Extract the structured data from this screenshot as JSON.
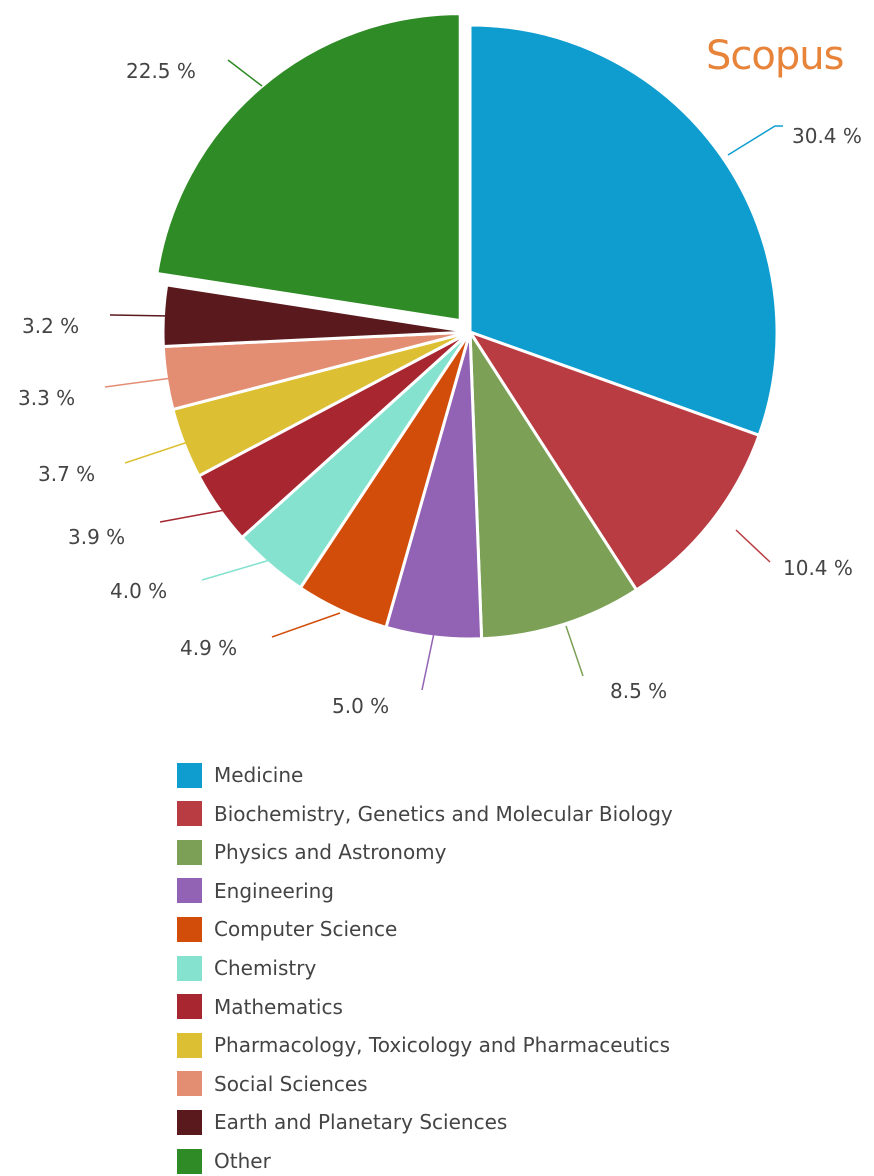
{
  "brand": "Scopus",
  "chart_data": {
    "type": "pie",
    "unit": "%",
    "slices": [
      {
        "label": "Medicine",
        "value": 30.4,
        "value_label": "30.4 %",
        "color": "#0f9dd0"
      },
      {
        "label": "Biochemistry, Genetics and Molecular Biology",
        "value": 10.4,
        "value_label": "10.4 %",
        "color": "#b93c43"
      },
      {
        "label": "Physics and Astronomy",
        "value": 8.5,
        "value_label": "8.5 %",
        "color": "#7ba056"
      },
      {
        "label": "Engineering",
        "value": 5.0,
        "value_label": "5.0 %",
        "color": "#9262b4"
      },
      {
        "label": "Computer Science",
        "value": 4.9,
        "value_label": "4.9 %",
        "color": "#d14d09"
      },
      {
        "label": "Chemistry",
        "value": 4.0,
        "value_label": "4.0 %",
        "color": "#84e2cf"
      },
      {
        "label": "Mathematics",
        "value": 3.9,
        "value_label": "3.9 %",
        "color": "#a72630"
      },
      {
        "label": "Pharmacology, Toxicology and Pharmaceutics",
        "value": 3.7,
        "value_label": "3.7 %",
        "color": "#dcbf33"
      },
      {
        "label": "Social Sciences",
        "value": 3.3,
        "value_label": "3.3 %",
        "color": "#e38d72"
      },
      {
        "label": "Earth and Planetary Sciences",
        "value": 3.2,
        "value_label": "3.2 %",
        "color": "#5a1a1d"
      },
      {
        "label": "Other",
        "value": 22.5,
        "value_label": "22.5 %",
        "color": "#2f8b25",
        "exploded": true
      }
    ],
    "legend_position": "bottom"
  }
}
